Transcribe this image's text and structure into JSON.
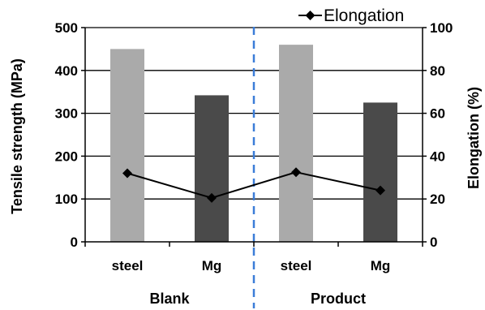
{
  "chart_data": {
    "type": "bar",
    "categories": [
      "steel",
      "Mg",
      "steel",
      "Mg"
    ],
    "groups": [
      {
        "label": "Blank",
        "span": [
          0,
          1
        ]
      },
      {
        "label": "Product",
        "span": [
          2,
          3
        ]
      }
    ],
    "series": [
      {
        "kind": "bar",
        "axis": "left",
        "values": [
          450,
          342,
          460,
          325
        ],
        "colors": [
          "#aaaaaa",
          "#4a4a4a",
          "#aaaaaa",
          "#4a4a4a"
        ]
      },
      {
        "kind": "line",
        "axis": "right",
        "name": "Elongation",
        "values": [
          32,
          20.5,
          32.5,
          24
        ],
        "color": "#000000"
      }
    ],
    "ylabel": "Tensile strength (MPa)",
    "ylim": [
      0,
      500
    ],
    "yticks": [
      0,
      100,
      200,
      300,
      400,
      500
    ],
    "y2label": "Elongation (%)",
    "y2lim": [
      0,
      100
    ],
    "y2ticks": [
      0,
      20,
      40,
      60,
      80,
      100
    ],
    "grid": true,
    "legend": "top-right",
    "divider": {
      "style": "dashed",
      "color": "#3b7dd8"
    }
  }
}
